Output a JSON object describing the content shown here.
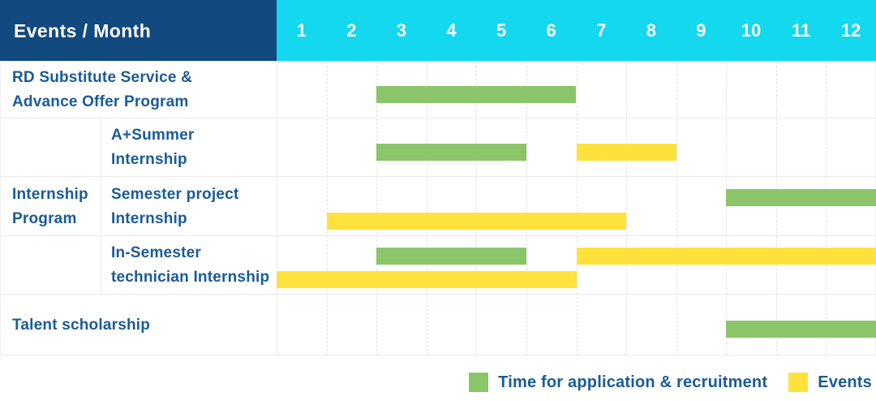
{
  "header": {
    "title": "Events / Month",
    "months": [
      "1",
      "2",
      "3",
      "4",
      "5",
      "6",
      "7",
      "8",
      "9",
      "10",
      "11",
      "12"
    ]
  },
  "rows": [
    {
      "id": "rd",
      "lines": [
        "RD Substitute Service &",
        "Advance Offer Program"
      ]
    },
    {
      "id": "internship_group",
      "lines": [
        "Internship",
        "Program"
      ]
    },
    {
      "id": "summer",
      "lines": [
        "A+Summer",
        "Internship"
      ]
    },
    {
      "id": "semester",
      "lines": [
        "Semester project",
        "Internship"
      ]
    },
    {
      "id": "insem",
      "lines": [
        "In-Semester",
        "technician Internship"
      ]
    },
    {
      "id": "talent",
      "lines": [
        "Talent scholarship"
      ]
    }
  ],
  "legend": {
    "items": [
      {
        "color_key": "green",
        "label": "Time for application & recruitment"
      },
      {
        "color_key": "yellow",
        "label": "Events"
      }
    ]
  },
  "colors": {
    "header_navy": "#12497E",
    "header_cyan": "#13D8EE",
    "green": "#8BC56A",
    "yellow": "#FFE23C",
    "label_blue": "#1A5B96",
    "grid_line": "#E3E3E3",
    "row_line": "#E9E9E9"
  },
  "chart_data": {
    "type": "gantt",
    "title": "Events / Month",
    "x_axis": {
      "label": "Month",
      "ticks": [
        1,
        2,
        3,
        4,
        5,
        6,
        7,
        8,
        9,
        10,
        11,
        12
      ],
      "range": [
        1,
        12
      ]
    },
    "grid": "vertical-dashed",
    "legend_position": "bottom-right",
    "series_legend": [
      "Time for application & recruitment",
      "Events"
    ],
    "tasks": [
      {
        "row": "RD Substitute Service & Advance Offer Program",
        "row_id": "rd",
        "series": "Time for application & recruitment",
        "color": "green",
        "lane": "mid",
        "start_month": 3,
        "end_month": 6
      },
      {
        "row": "A+Summer Internship",
        "row_id": "summer",
        "series": "Time for application & recruitment",
        "color": "green",
        "lane": "mid",
        "start_month": 3,
        "end_month": 5
      },
      {
        "row": "A+Summer Internship",
        "row_id": "summer",
        "series": "Events",
        "color": "yellow",
        "lane": "mid",
        "start_month": 7,
        "end_month": 8
      },
      {
        "row": "Semester project Internship",
        "row_id": "semester",
        "series": "Time for application & recruitment",
        "color": "green",
        "lane": "upper",
        "start_month": 10,
        "end_month": 12
      },
      {
        "row": "Semester project Internship",
        "row_id": "semester",
        "series": "Events",
        "color": "yellow",
        "lane": "lower",
        "start_month": 2,
        "end_month": 7
      },
      {
        "row": "In-Semester technician Internship",
        "row_id": "insem",
        "series": "Time for application & recruitment",
        "color": "green",
        "lane": "upper",
        "start_month": 3,
        "end_month": 5
      },
      {
        "row": "In-Semester technician Internship",
        "row_id": "insem",
        "series": "Events",
        "color": "yellow",
        "lane": "upper",
        "start_month": 7,
        "end_month": 12
      },
      {
        "row": "In-Semester technician Internship",
        "row_id": "insem",
        "series": "Events",
        "color": "yellow",
        "lane": "lower",
        "start_month": 1,
        "end_month": 6
      },
      {
        "row": "Talent scholarship",
        "row_id": "talent",
        "series": "Time for application & recruitment",
        "color": "green",
        "lane": "mid",
        "start_month": 10,
        "end_month": 12
      }
    ]
  }
}
